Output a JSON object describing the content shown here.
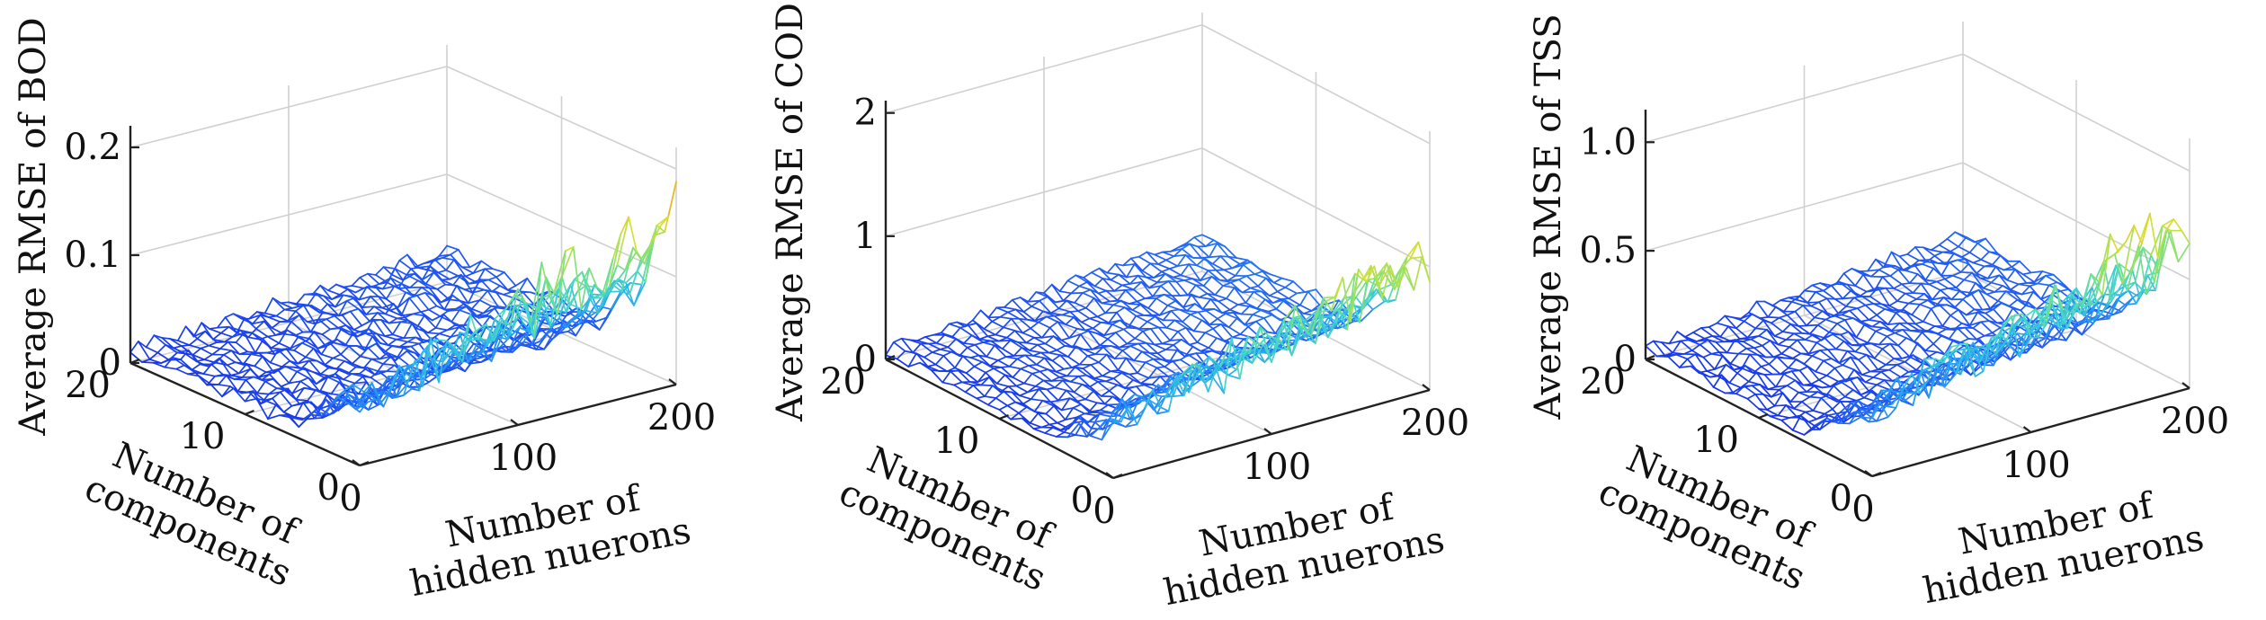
{
  "chart_data": [
    {
      "type": "surface",
      "zlabel": "Average RMSE of BOD",
      "xlabel_line1": "Number of",
      "xlabel_line2": "components",
      "ylabel_line1": "Number of",
      "ylabel_line2": "hidden nuerons",
      "x_range": [
        0,
        20
      ],
      "y_range": [
        0,
        200
      ],
      "z_range": [
        0,
        0.22
      ],
      "x_ticks": [
        "0",
        "10",
        "20"
      ],
      "y_ticks": [
        "0",
        "100",
        "200"
      ],
      "z_ticks": [
        {
          "v": 0,
          "t": "0"
        },
        {
          "v": 0.1,
          "t": "0.1"
        },
        {
          "v": 0.2,
          "t": "0.2"
        }
      ],
      "surface": {
        "x_steps": 20,
        "y_steps": 40,
        "base_low": 0.012,
        "base_high": 0.03,
        "peak_high": 0.19,
        "onset_x": 6,
        "grid": true
      }
    },
    {
      "type": "surface",
      "zlabel": "Average RMSE of COD",
      "xlabel_line1": "Number of",
      "xlabel_line2": "components",
      "ylabel_line1": "Number of",
      "ylabel_line2": "hidden nuerons",
      "x_range": [
        0,
        20
      ],
      "y_range": [
        0,
        200
      ],
      "z_range": [
        0,
        2.1
      ],
      "x_ticks": [
        "0",
        "10",
        "20"
      ],
      "y_ticks": [
        "0",
        "100",
        "200"
      ],
      "z_ticks": [
        {
          "v": 0,
          "t": "0"
        },
        {
          "v": 1,
          "t": "1"
        },
        {
          "v": 2,
          "t": "2"
        }
      ],
      "surface": {
        "x_steps": 20,
        "y_steps": 40,
        "base_low": 0.08,
        "base_high": 0.3,
        "peak_high": 1.35,
        "onset_x": 6,
        "grid": true
      }
    },
    {
      "type": "surface",
      "zlabel": "Average RMSE of TSS",
      "xlabel_line1": "Number of",
      "xlabel_line2": "components",
      "ylabel_line1": "Number of",
      "ylabel_line2": "hidden nuerons",
      "x_range": [
        0,
        20
      ],
      "y_range": [
        0,
        200
      ],
      "z_range": [
        0,
        1.15
      ],
      "x_ticks": [
        "0",
        "10",
        "20"
      ],
      "y_ticks": [
        "0",
        "100",
        "200"
      ],
      "z_ticks": [
        {
          "v": 0,
          "t": "0"
        },
        {
          "v": 0.5,
          "t": "0.5"
        },
        {
          "v": 1,
          "t": "1.0"
        }
      ],
      "surface": {
        "x_steps": 20,
        "y_steps": 40,
        "base_low": 0.05,
        "base_high": 0.18,
        "peak_high": 0.95,
        "onset_x": 6,
        "grid": true
      }
    }
  ]
}
